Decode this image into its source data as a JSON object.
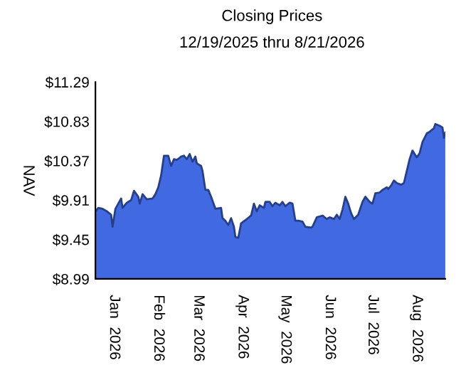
{
  "chart_data": {
    "type": "area",
    "title": "Closing Prices",
    "subtitle": "12/19/2025 thru 8/21/2026",
    "ylabel": "NAV",
    "x": [
      "2025-12-19",
      "2025-12-21",
      "2025-12-24",
      "2025-12-27",
      "2025-12-30",
      "2025-12-31",
      "2026-01-02",
      "2026-01-06",
      "2026-01-07",
      "2026-01-10",
      "2026-01-13",
      "2026-01-15",
      "2026-01-18",
      "2026-01-19",
      "2026-01-21",
      "2026-01-24",
      "2026-01-28",
      "2026-01-30",
      "2026-02-01",
      "2026-02-03",
      "2026-02-05",
      "2026-02-08",
      "2026-02-10",
      "2026-02-12",
      "2026-02-14",
      "2026-02-17",
      "2026-02-19",
      "2026-02-21",
      "2026-02-23",
      "2026-02-25",
      "2026-02-27",
      "2026-02-28",
      "2026-03-03",
      "2026-03-04",
      "2026-03-06",
      "2026-03-08",
      "2026-03-10",
      "2026-03-13",
      "2026-03-17",
      "2026-03-18",
      "2026-03-20",
      "2026-03-22",
      "2026-03-24",
      "2026-03-26",
      "2026-03-27",
      "2026-03-29",
      "2026-03-31",
      "2026-04-04",
      "2026-04-07",
      "2026-04-09",
      "2026-04-11",
      "2026-04-13",
      "2026-04-16",
      "2026-04-17",
      "2026-04-20",
      "2026-04-22",
      "2026-04-24",
      "2026-04-27",
      "2026-04-29",
      "2026-05-01",
      "2026-05-04",
      "2026-05-06",
      "2026-05-08",
      "2026-05-10",
      "2026-05-13",
      "2026-05-15",
      "2026-05-19",
      "2026-05-20",
      "2026-05-23",
      "2026-05-27",
      "2026-05-30",
      "2026-06-01",
      "2026-06-04",
      "2026-06-06",
      "2026-06-08",
      "2026-06-10",
      "2026-06-12",
      "2026-06-14",
      "2026-06-16",
      "2026-06-18",
      "2026-06-21",
      "2026-06-24",
      "2026-06-26",
      "2026-06-29",
      "2026-07-01",
      "2026-07-03",
      "2026-07-06",
      "2026-07-08",
      "2026-07-11",
      "2026-07-12",
      "2026-07-14",
      "2026-07-16",
      "2026-07-18",
      "2026-07-21",
      "2026-07-23",
      "2026-07-25",
      "2026-07-27",
      "2026-07-29",
      "2026-08-01",
      "2026-08-03",
      "2026-08-05",
      "2026-08-08",
      "2026-08-10",
      "2026-08-13",
      "2026-08-14",
      "2026-08-17",
      "2026-08-19",
      "2026-08-20",
      "2026-08-21"
    ],
    "series": [
      {
        "color": "#4169e1",
        "values": [
          9.78,
          9.82,
          9.81,
          9.78,
          9.74,
          9.6,
          9.81,
          9.93,
          9.82,
          9.88,
          9.91,
          10.02,
          9.95,
          9.87,
          9.98,
          9.92,
          9.93,
          9.98,
          10.06,
          10.2,
          10.43,
          10.43,
          10.31,
          10.39,
          10.38,
          10.42,
          10.43,
          10.39,
          10.45,
          10.36,
          10.42,
          10.34,
          10.31,
          10.25,
          10.03,
          10.03,
          9.95,
          9.81,
          9.82,
          9.7,
          9.67,
          9.62,
          9.7,
          9.6,
          9.48,
          9.47,
          9.64,
          9.69,
          9.73,
          9.87,
          9.78,
          9.85,
          9.82,
          9.89,
          9.89,
          9.84,
          9.88,
          9.85,
          9.89,
          9.84,
          9.88,
          9.87,
          9.67,
          9.67,
          9.66,
          9.6,
          9.59,
          9.6,
          9.71,
          9.73,
          9.69,
          9.71,
          9.69,
          9.74,
          9.69,
          9.8,
          9.95,
          9.87,
          9.76,
          9.69,
          9.74,
          9.89,
          9.95,
          9.89,
          9.87,
          9.99,
          10.0,
          10.03,
          10.06,
          10.04,
          10.08,
          10.14,
          10.11,
          10.09,
          10.11,
          10.25,
          10.39,
          10.49,
          10.41,
          10.46,
          10.59,
          10.69,
          10.71,
          10.75,
          10.8,
          10.78,
          10.76,
          10.64,
          10.7
        ]
      }
    ],
    "xlim": [
      "2025-12-19",
      "2026-08-21"
    ],
    "xticks": [
      {
        "value": "2026-01-01",
        "label": "Jan  2026"
      },
      {
        "value": "2026-02-01",
        "label": "Feb  2026"
      },
      {
        "value": "2026-03-01",
        "label": "Mar  2026"
      },
      {
        "value": "2026-04-01",
        "label": "Apr  2026"
      },
      {
        "value": "2026-05-01",
        "label": "May  2026"
      },
      {
        "value": "2026-06-01",
        "label": "Jun  2026"
      },
      {
        "value": "2026-07-01",
        "label": "Jul  2026"
      },
      {
        "value": "2026-08-01",
        "label": "Aug  2026"
      }
    ],
    "ylim": [
      8.99,
      11.29
    ],
    "yticks": [
      {
        "value": 8.99,
        "label": "$8.99"
      },
      {
        "value": 9.45,
        "label": "$9.45"
      },
      {
        "value": 9.91,
        "label": "$9.91"
      },
      {
        "value": 10.37,
        "label": "$10.37"
      },
      {
        "value": 10.83,
        "label": "$10.83"
      },
      {
        "value": 11.29,
        "label": "$11.29"
      }
    ],
    "grid": false,
    "legend": false
  }
}
